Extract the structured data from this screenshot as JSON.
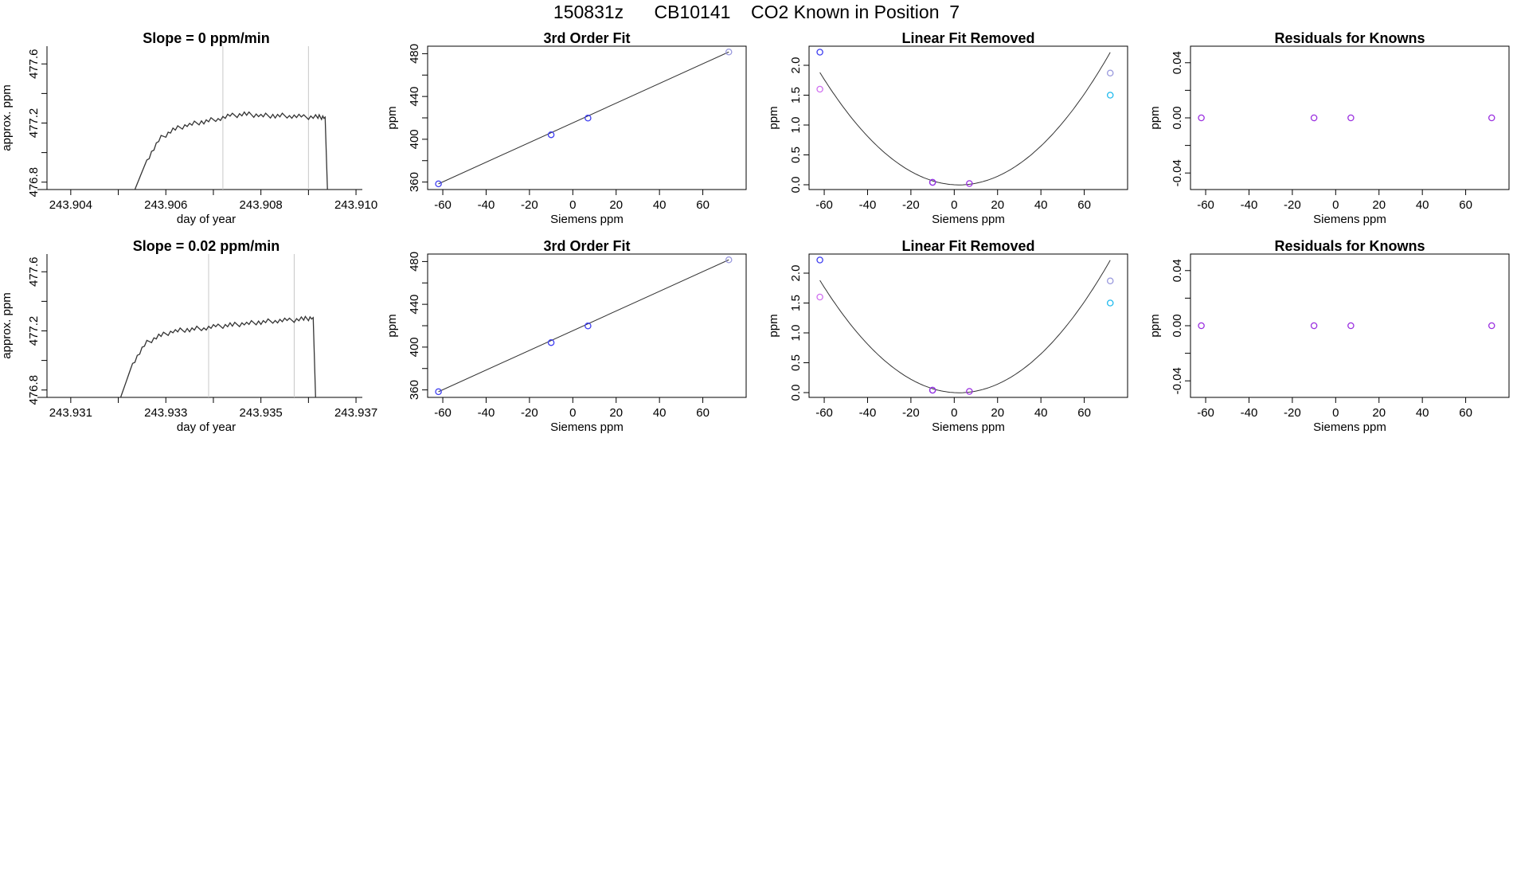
{
  "main_title": "150831z      CB10141    CO2 Known in Position  7",
  "colors": {
    "line": "#333333",
    "vline": "#c8c8c8",
    "blue": "#3d3df0",
    "purple": "#9b30e0",
    "lavender": "#9999dd",
    "magenta": "#d070f0",
    "cyan": "#22bbee"
  },
  "chart_data": [
    {
      "type": "line",
      "title": "Slope =  0  ppm/min",
      "xlabel": "day of year",
      "ylabel": "approx. ppm",
      "xlim": [
        243.9035,
        243.9102
      ],
      "ylim": [
        476.75,
        477.72
      ],
      "xticks": [
        "243.904",
        "243.906",
        "243.908",
        "243.910"
      ],
      "xtick_values": [
        243.904,
        243.905,
        243.906,
        243.907,
        243.908,
        243.909,
        243.91
      ],
      "yticks": [
        "476.8",
        "477.2",
        "477.6"
      ],
      "ytick_values": [
        476.8,
        477.0,
        477.2,
        477.4,
        477.6
      ],
      "vlines": [
        243.9072,
        243.909
      ],
      "series": [
        {
          "x": [
            243.90535,
            243.9056,
            243.9059,
            243.9062,
            243.9065,
            243.9068,
            243.9071,
            243.9074,
            243.9077,
            243.908,
            243.9083,
            243.9086,
            243.9089,
            243.9092,
            243.90935,
            243.9094
          ],
          "y": [
            476.75,
            476.95,
            477.1,
            477.16,
            477.19,
            477.21,
            477.23,
            477.25,
            477.26,
            477.25,
            477.25,
            477.25,
            477.24,
            477.24,
            477.24,
            476.75
          ]
        }
      ]
    },
    {
      "type": "scatter",
      "title": "3rd Order Fit",
      "xlabel": "Siemens ppm",
      "ylabel": "ppm",
      "xlim": [
        -67,
        80
      ],
      "ylim": [
        353,
        487
      ],
      "xticks": [
        "-60",
        "-40",
        "-20",
        "0",
        "20",
        "40",
        "60"
      ],
      "xtick_values": [
        -60,
        -40,
        -20,
        0,
        20,
        40,
        60
      ],
      "yticks": [
        "360",
        "400",
        "440",
        "480"
      ],
      "ytick_values": [
        360,
        380,
        400,
        420,
        440,
        460,
        480
      ],
      "series": [
        {
          "kind": "line",
          "x": [
            -62,
            72
          ],
          "y": [
            358.3,
            481.6
          ]
        },
        {
          "kind": "points",
          "x": [
            -62,
            -10,
            7,
            72
          ],
          "y": [
            358.3,
            404.2,
            419.8,
            481.6
          ],
          "colors": [
            "blue",
            "blue",
            "blue",
            "lavender"
          ]
        }
      ]
    },
    {
      "type": "scatter",
      "title": "Linear Fit Removed",
      "xlabel": "Siemens ppm",
      "ylabel": "ppm",
      "xlim": [
        -67,
        80
      ],
      "ylim": [
        -0.08,
        2.32
      ],
      "xticks": [
        "-60",
        "-40",
        "-20",
        "0",
        "20",
        "40",
        "60"
      ],
      "xtick_values": [
        -60,
        -40,
        -20,
        0,
        20,
        40,
        60
      ],
      "yticks": [
        "0.0",
        "0.5",
        "1.0",
        "1.5",
        "2.0"
      ],
      "ytick_values": [
        0.0,
        0.5,
        1.0,
        1.5,
        2.0
      ],
      "series": [
        {
          "kind": "curve",
          "a": 0.000456,
          "b": -0.00204,
          "c": 0.0
        },
        {
          "kind": "points",
          "x": [
            -62,
            -62,
            -10,
            -10,
            7,
            72,
            72
          ],
          "y": [
            2.22,
            1.6,
            0.04,
            0.04,
            0.02,
            1.87,
            1.5
          ],
          "colors": [
            "blue",
            "magenta",
            "blue",
            "purple",
            "purple",
            "lavender",
            "cyan"
          ]
        }
      ]
    },
    {
      "type": "scatter",
      "title": "Residuals for Knowns",
      "xlabel": "Siemens ppm",
      "ylabel": "ppm",
      "xlim": [
        -67,
        80
      ],
      "ylim": [
        -0.052,
        0.052
      ],
      "xticks": [
        "-60",
        "-40",
        "-20",
        "0",
        "20",
        "40",
        "60"
      ],
      "xtick_values": [
        -60,
        -40,
        -20,
        0,
        20,
        40,
        60
      ],
      "yticks": [
        "-0.04",
        "0.00",
        "0.04"
      ],
      "ytick_values": [
        -0.04,
        -0.02,
        0.0,
        0.02,
        0.04
      ],
      "series": [
        {
          "kind": "points",
          "x": [
            -62,
            -10,
            7,
            72
          ],
          "y": [
            0,
            0,
            0,
            0
          ],
          "colors": [
            "purple",
            "purple",
            "purple",
            "purple"
          ]
        }
      ]
    },
    {
      "type": "line",
      "title": "Slope =  0.02  ppm/min",
      "xlabel": "day of year",
      "ylabel": "approx. ppm",
      "xlim": [
        243.9305,
        243.9372
      ],
      "ylim": [
        476.75,
        477.72
      ],
      "xticks": [
        "243.931",
        "243.933",
        "243.935",
        "243.937"
      ],
      "xtick_values": [
        243.931,
        243.932,
        243.933,
        243.934,
        243.935,
        243.936,
        243.937
      ],
      "yticks": [
        "476.8",
        "477.2",
        "477.6"
      ],
      "ytick_values": [
        476.8,
        477.0,
        477.2,
        477.4,
        477.6
      ],
      "vlines": [
        243.9339,
        243.9357
      ],
      "series": [
        {
          "x": [
            243.93205,
            243.9323,
            243.9326,
            243.9329,
            243.9332,
            243.9335,
            243.9338,
            243.9341,
            243.9344,
            243.9347,
            243.935,
            243.9353,
            243.9356,
            243.9359,
            243.9361,
            243.93615
          ],
          "y": [
            476.75,
            476.98,
            477.12,
            477.17,
            477.2,
            477.21,
            477.22,
            477.23,
            477.24,
            477.25,
            477.26,
            477.27,
            477.27,
            477.28,
            477.29,
            476.75
          ]
        }
      ]
    },
    {
      "type": "scatter",
      "title": "3rd Order Fit",
      "xlabel": "Siemens ppm",
      "ylabel": "ppm",
      "xlim": [
        -67,
        80
      ],
      "ylim": [
        353,
        487
      ],
      "xticks": [
        "-60",
        "-40",
        "-20",
        "0",
        "20",
        "40",
        "60"
      ],
      "xtick_values": [
        -60,
        -40,
        -20,
        0,
        20,
        40,
        60
      ],
      "yticks": [
        "360",
        "400",
        "440",
        "480"
      ],
      "ytick_values": [
        360,
        380,
        400,
        420,
        440,
        460,
        480
      ],
      "series": [
        {
          "kind": "line",
          "x": [
            -62,
            72
          ],
          "y": [
            358.3,
            481.6
          ]
        },
        {
          "kind": "points",
          "x": [
            -62,
            -10,
            7,
            72
          ],
          "y": [
            358.3,
            404.2,
            419.8,
            481.6
          ],
          "colors": [
            "blue",
            "blue",
            "blue",
            "lavender"
          ]
        }
      ]
    },
    {
      "type": "scatter",
      "title": "Linear Fit Removed",
      "xlabel": "Siemens ppm",
      "ylabel": "ppm",
      "xlim": [
        -67,
        80
      ],
      "ylim": [
        -0.08,
        2.32
      ],
      "xticks": [
        "-60",
        "-40",
        "-20",
        "0",
        "20",
        "40",
        "60"
      ],
      "xtick_values": [
        -60,
        -40,
        -20,
        0,
        20,
        40,
        60
      ],
      "yticks": [
        "0.0",
        "0.5",
        "1.0",
        "1.5",
        "2.0"
      ],
      "ytick_values": [
        0.0,
        0.5,
        1.0,
        1.5,
        2.0
      ],
      "series": [
        {
          "kind": "curve",
          "a": 0.000456,
          "b": -0.00204,
          "c": 0.0
        },
        {
          "kind": "points",
          "x": [
            -62,
            -62,
            -10,
            -10,
            7,
            72,
            72
          ],
          "y": [
            2.22,
            1.6,
            0.04,
            0.04,
            0.02,
            1.87,
            1.5
          ],
          "colors": [
            "blue",
            "magenta",
            "blue",
            "purple",
            "purple",
            "lavender",
            "cyan"
          ]
        }
      ]
    },
    {
      "type": "scatter",
      "title": "Residuals for Knowns",
      "xlabel": "Siemens ppm",
      "ylabel": "ppm",
      "xlim": [
        -67,
        80
      ],
      "ylim": [
        -0.052,
        0.052
      ],
      "xticks": [
        "-60",
        "-40",
        "-20",
        "0",
        "20",
        "40",
        "60"
      ],
      "xtick_values": [
        -60,
        -40,
        -20,
        0,
        20,
        40,
        60
      ],
      "yticks": [
        "-0.04",
        "0.00",
        "0.04"
      ],
      "ytick_values": [
        -0.04,
        -0.02,
        0.0,
        0.02,
        0.04
      ],
      "series": [
        {
          "kind": "points",
          "x": [
            -62,
            -10,
            7,
            72
          ],
          "y": [
            0,
            0,
            0,
            0
          ],
          "colors": [
            "purple",
            "purple",
            "purple",
            "purple"
          ]
        }
      ]
    }
  ]
}
